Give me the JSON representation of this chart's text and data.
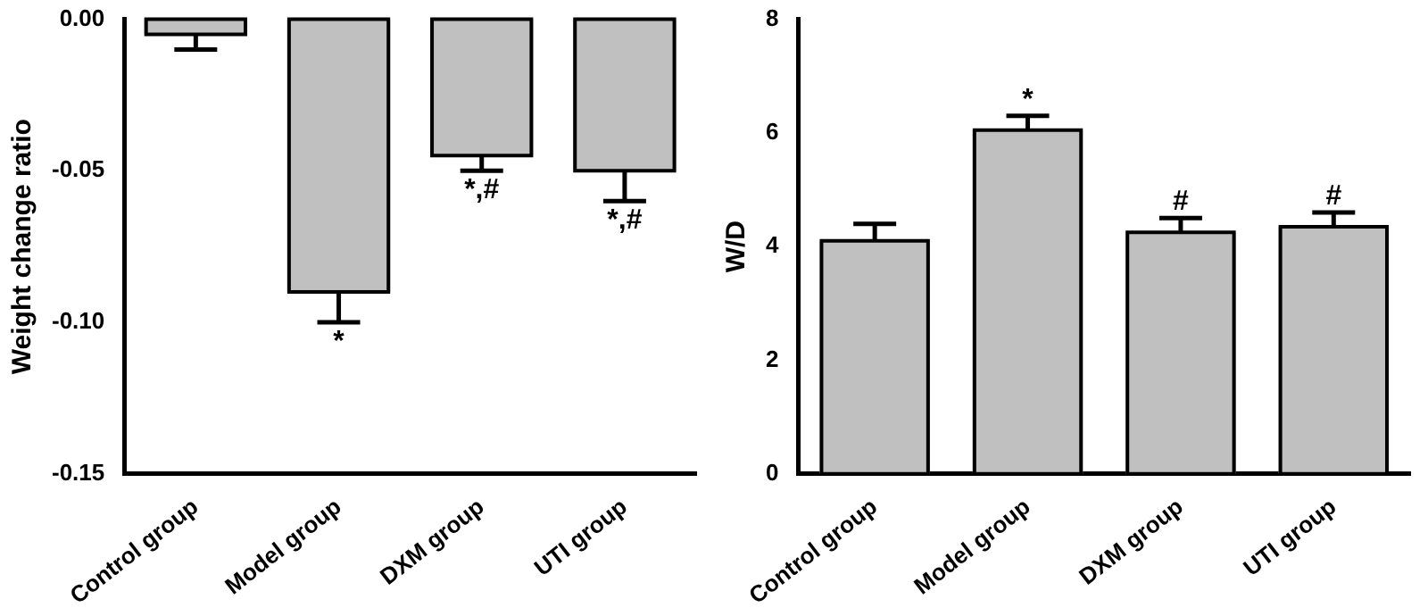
{
  "chart_data": [
    {
      "type": "bar",
      "ylabel": "Weight change ratio",
      "categories": [
        "Control group",
        "Model group",
        "DXM group",
        "UTI group"
      ],
      "values": [
        -0.005,
        -0.09,
        -0.045,
        -0.05
      ],
      "errors": [
        [
          -0.01,
          -0.005
        ],
        [
          -0.1,
          -0.09
        ],
        [
          -0.05,
          -0.045
        ],
        [
          -0.06,
          -0.05
        ]
      ],
      "color": "#c0c0c0",
      "ylim": [
        -0.15,
        0
      ],
      "yticks": [
        {
          "value": 0,
          "label": "0.00"
        },
        {
          "value": -0.05,
          "label": "-0.05"
        },
        {
          "value": -0.1,
          "label": "-0.10"
        },
        {
          "value": -0.15,
          "label": "-0.15"
        }
      ],
      "grid": false,
      "legend": false,
      "annotations": [
        {
          "text": "*",
          "x": "Model group",
          "y": -0.1
        },
        {
          "text": "*,#",
          "x": "DXM group",
          "y": -0.05
        },
        {
          "text": "*,#",
          "x": "UTI group",
          "y": -0.06
        }
      ]
    },
    {
      "type": "bar",
      "ylabel": "W/D",
      "categories": [
        "Control group",
        "Model group",
        "DXM group",
        "UTI group"
      ],
      "values": [
        4.1,
        6.05,
        4.25,
        4.35
      ],
      "errors": [
        [
          4.1,
          4.4
        ],
        [
          6.05,
          6.3
        ],
        [
          4.25,
          4.5
        ],
        [
          4.35,
          4.6
        ]
      ],
      "color": "#c0c0c0",
      "ylim": [
        0,
        8
      ],
      "yticks": [
        0,
        2,
        4,
        6,
        8
      ],
      "grid": false,
      "legend": false,
      "annotations": [
        {
          "text": "*",
          "x": "Model group",
          "y": 6.3
        },
        {
          "text": "#",
          "x": "DXM group",
          "y": 4.5
        },
        {
          "text": "#",
          "x": "UTI group",
          "y": 4.6
        }
      ]
    }
  ]
}
